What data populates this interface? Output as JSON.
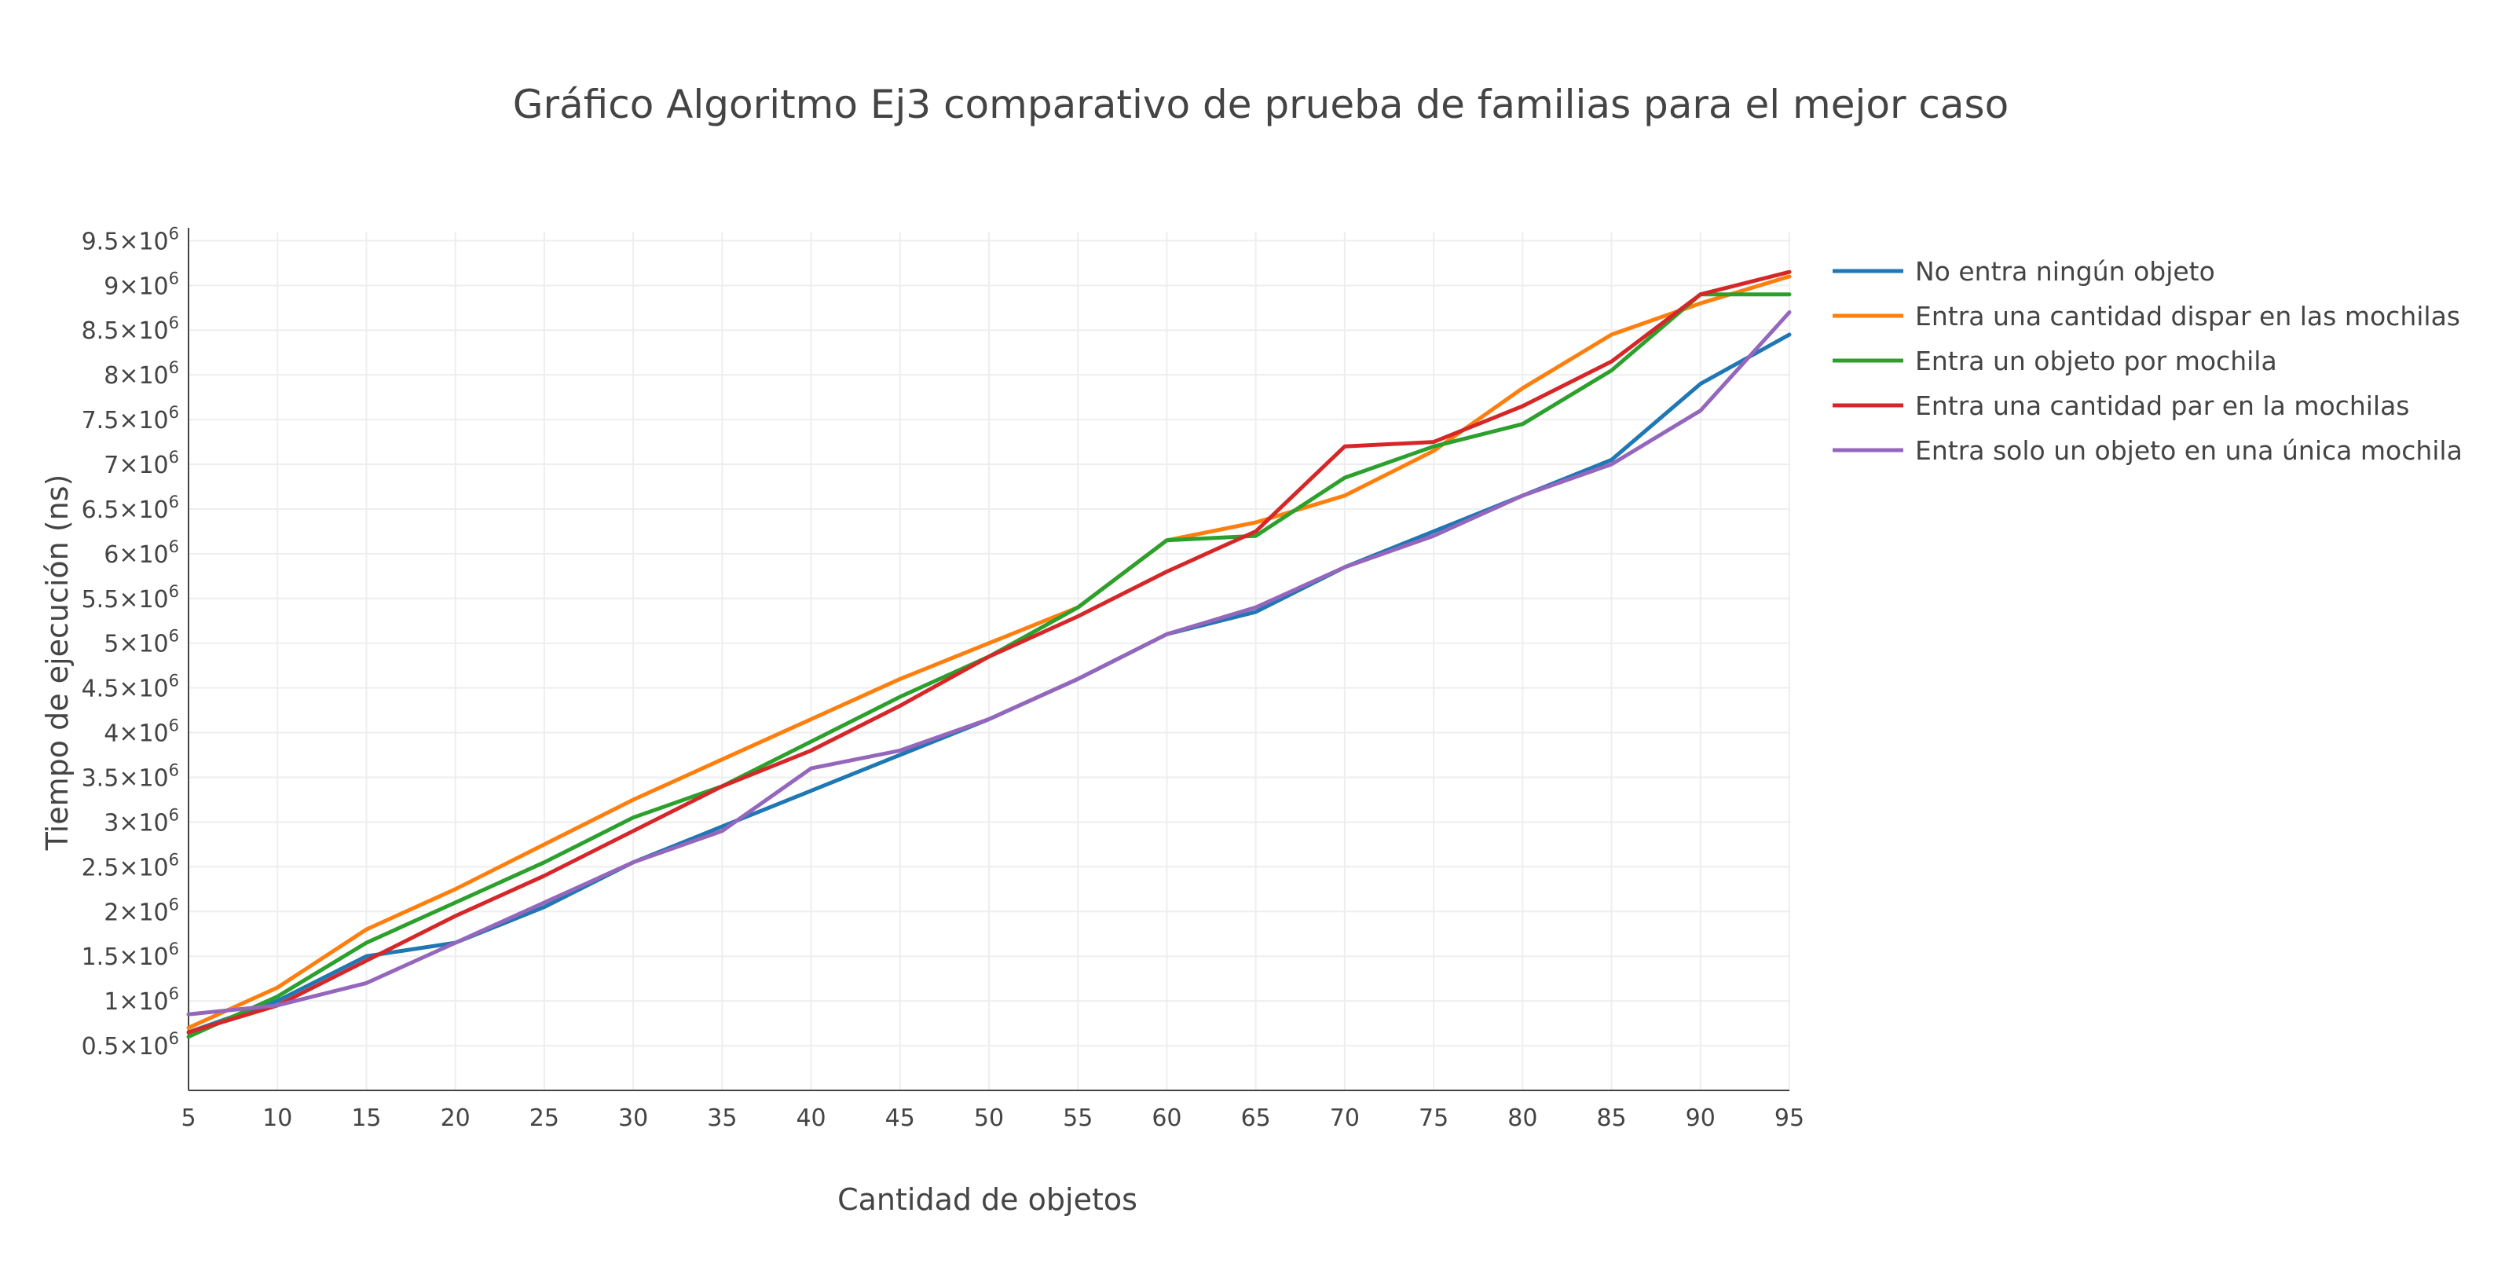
{
  "chart_data": {
    "type": "line",
    "title": "Gráfico Algoritmo Ej3 comparativo de prueba de familias para el mejor caso",
    "xlabel": "Cantidad de objetos",
    "ylabel": "Tiempo de ejecución (ns)",
    "xlim": [
      5,
      95
    ],
    "ylim": [
      0,
      9600000
    ],
    "x_ticks": [
      5,
      10,
      15,
      20,
      25,
      30,
      35,
      40,
      45,
      50,
      55,
      60,
      65,
      70,
      75,
      80,
      85,
      90,
      95
    ],
    "y_ticks": [
      {
        "value": 500000,
        "mantissa": "0.5"
      },
      {
        "value": 1000000,
        "mantissa": "1"
      },
      {
        "value": 1500000,
        "mantissa": "1.5"
      },
      {
        "value": 2000000,
        "mantissa": "2"
      },
      {
        "value": 2500000,
        "mantissa": "2.5"
      },
      {
        "value": 3000000,
        "mantissa": "3"
      },
      {
        "value": 3500000,
        "mantissa": "3.5"
      },
      {
        "value": 4000000,
        "mantissa": "4"
      },
      {
        "value": 4500000,
        "mantissa": "4.5"
      },
      {
        "value": 5000000,
        "mantissa": "5"
      },
      {
        "value": 5500000,
        "mantissa": "5.5"
      },
      {
        "value": 6000000,
        "mantissa": "6"
      },
      {
        "value": 6500000,
        "mantissa": "6.5"
      },
      {
        "value": 7000000,
        "mantissa": "7"
      },
      {
        "value": 7500000,
        "mantissa": "7.5"
      },
      {
        "value": 8000000,
        "mantissa": "8"
      },
      {
        "value": 8500000,
        "mantissa": "8.5"
      },
      {
        "value": 9000000,
        "mantissa": "9"
      },
      {
        "value": 9500000,
        "mantissa": "9.5"
      }
    ],
    "y_tick_base": "×10",
    "y_tick_exponent": "6",
    "grid": true,
    "legend_position": "top-right",
    "x": [
      5,
      10,
      15,
      20,
      25,
      30,
      35,
      40,
      45,
      50,
      55,
      60,
      65,
      70,
      75,
      80,
      85,
      90,
      95
    ],
    "series": [
      {
        "name": "No entra ningún objeto",
        "color": "#1f77b4",
        "values": [
          650000,
          1000000,
          1500000,
          1650000,
          2050000,
          2550000,
          2950000,
          3350000,
          3750000,
          4150000,
          4600000,
          5100000,
          5350000,
          5850000,
          6250000,
          6650000,
          7050000,
          7900000,
          8450000
        ]
      },
      {
        "name": "Entra una cantidad dispar en las mochilas",
        "color": "#ff7f0e",
        "values": [
          700000,
          1150000,
          1800000,
          2250000,
          2750000,
          3250000,
          3700000,
          4150000,
          4600000,
          5000000,
          5400000,
          6150000,
          6350000,
          6650000,
          7150000,
          7850000,
          8450000,
          8800000,
          9100000
        ]
      },
      {
        "name": "Entra un objeto por mochila",
        "color": "#2ca02c",
        "values": [
          600000,
          1050000,
          1650000,
          2100000,
          2550000,
          3050000,
          3400000,
          3900000,
          4400000,
          4850000,
          5400000,
          6150000,
          6200000,
          6850000,
          7200000,
          7450000,
          8050000,
          8900000,
          8900000
        ]
      },
      {
        "name": "Entra una cantidad par en la mochilas",
        "color": "#d62728",
        "values": [
          650000,
          950000,
          1450000,
          1950000,
          2400000,
          2900000,
          3400000,
          3800000,
          4300000,
          4850000,
          5300000,
          5800000,
          6250000,
          7200000,
          7250000,
          7650000,
          8150000,
          8900000,
          9150000
        ]
      },
      {
        "name": "Entra solo un objeto en una única mochila",
        "color": "#9467bd",
        "values": [
          850000,
          950000,
          1200000,
          1650000,
          2100000,
          2550000,
          2900000,
          3600000,
          3800000,
          4150000,
          4600000,
          5100000,
          5400000,
          5850000,
          6200000,
          6650000,
          7000000,
          7600000,
          8700000
        ]
      }
    ]
  }
}
